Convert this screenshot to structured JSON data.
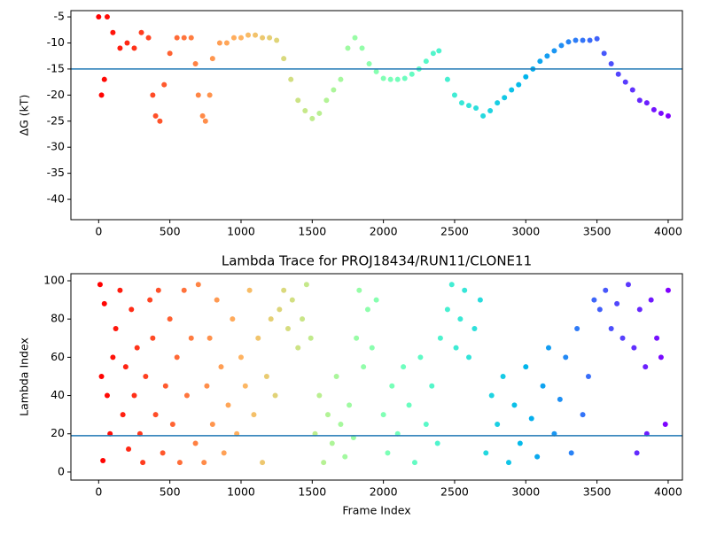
{
  "chart_data": [
    {
      "type": "scatter",
      "ylabel": "ΔG (kT)",
      "colormap": "rainbow_r",
      "hline": -15,
      "hline_color": "#1f77b4",
      "xlim": [
        -195,
        4100
      ],
      "ylim": [
        -43.9,
        -3.8
      ],
      "xticks": [
        0,
        500,
        1000,
        1500,
        2000,
        2500,
        3000,
        3500,
        4000
      ],
      "yticks": [
        -5,
        -10,
        -15,
        -20,
        -25,
        -30,
        -35,
        -40
      ],
      "x": [
        0,
        20,
        40,
        60,
        100,
        150,
        200,
        250,
        300,
        350,
        380,
        400,
        430,
        460,
        500,
        550,
        600,
        650,
        680,
        700,
        730,
        750,
        780,
        800,
        850,
        900,
        950,
        1000,
        1050,
        1100,
        1150,
        1200,
        1250,
        1300,
        1350,
        1400,
        1450,
        1500,
        1550,
        1600,
        1650,
        1700,
        1750,
        1800,
        1850,
        1900,
        1950,
        2000,
        2050,
        2100,
        2150,
        2200,
        2250,
        2300,
        2350,
        2390,
        2450,
        2500,
        2550,
        2600,
        2650,
        2700,
        2750,
        2800,
        2850,
        2900,
        2950,
        3000,
        3050,
        3100,
        3150,
        3200,
        3250,
        3300,
        3350,
        3400,
        3450,
        3500,
        3550,
        3600,
        3650,
        3700,
        3750,
        3800,
        3850,
        3900,
        3950,
        4000
      ],
      "values": [
        -5,
        -20,
        -17,
        -5,
        -8,
        -11,
        -10,
        -11,
        -8,
        -9,
        -20,
        -24,
        -25,
        -18,
        -12,
        -9,
        -9,
        -9,
        -14,
        -20,
        -24,
        -25,
        -20,
        -13,
        -10,
        -10,
        -9,
        -9,
        -8.5,
        -8.5,
        -9,
        -9,
        -9.5,
        -13,
        -17,
        -21,
        -23,
        -24.5,
        -23.5,
        -21,
        -19,
        -17,
        -11,
        -9,
        -11,
        -14,
        -15.5,
        -16.8,
        -17,
        -17,
        -16.8,
        -16,
        -15,
        -13.5,
        -12,
        -11.5,
        -17,
        -20,
        -21.5,
        -22,
        -22.5,
        -24,
        -23,
        -21.5,
        -20.5,
        -19,
        -18,
        -16.5,
        -15,
        -13.5,
        -12.5,
        -11.5,
        -10.5,
        -9.8,
        -9.5,
        -9.5,
        -9.5,
        -9.2,
        -12,
        -14,
        -16,
        -17.5,
        -19,
        -21,
        -21.5,
        -22.8,
        -23.5,
        -24
      ]
    },
    {
      "type": "scatter",
      "title": "Lambda Trace for PROJ18434/RUN11/CLONE11",
      "xlabel": "Frame Index",
      "ylabel": "Lambda Index",
      "colormap": "rainbow_r",
      "hline": 19,
      "hline_color": "#1f77b4",
      "xlim": [
        -195,
        4100
      ],
      "ylim": [
        -4.2,
        103.7
      ],
      "xticks": [
        0,
        500,
        1000,
        1500,
        2000,
        2500,
        3000,
        3500,
        4000
      ],
      "yticks": [
        0,
        20,
        40,
        60,
        80,
        100
      ],
      "x": [
        10,
        20,
        30,
        40,
        60,
        80,
        100,
        120,
        150,
        170,
        190,
        210,
        230,
        250,
        270,
        290,
        310,
        330,
        360,
        380,
        400,
        420,
        450,
        470,
        500,
        520,
        550,
        570,
        600,
        620,
        650,
        680,
        700,
        740,
        760,
        780,
        800,
        830,
        860,
        880,
        910,
        940,
        970,
        1000,
        1030,
        1060,
        1090,
        1120,
        1150,
        1180,
        1210,
        1240,
        1270,
        1300,
        1330,
        1360,
        1400,
        1430,
        1460,
        1490,
        1520,
        1550,
        1580,
        1610,
        1640,
        1670,
        1700,
        1730,
        1760,
        1790,
        1810,
        1830,
        1860,
        1890,
        1920,
        1950,
        2000,
        2030,
        2060,
        2100,
        2140,
        2180,
        2220,
        2260,
        2300,
        2340,
        2380,
        2400,
        2450,
        2480,
        2510,
        2540,
        2570,
        2600,
        2640,
        2680,
        2720,
        2760,
        2800,
        2840,
        2880,
        2920,
        2960,
        3000,
        3040,
        3080,
        3120,
        3160,
        3200,
        3240,
        3280,
        3320,
        3360,
        3400,
        3440,
        3480,
        3520,
        3560,
        3600,
        3640,
        3680,
        3720,
        3760,
        3780,
        3800,
        3840,
        3850,
        3880,
        3920,
        3950,
        3980,
        4000
      ],
      "values": [
        98,
        50,
        6,
        88,
        40,
        20,
        60,
        75,
        95,
        30,
        55,
        12,
        85,
        40,
        65,
        20,
        5,
        50,
        90,
        70,
        30,
        95,
        10,
        45,
        80,
        25,
        60,
        5,
        95,
        40,
        70,
        15,
        98,
        5,
        45,
        70,
        25,
        90,
        55,
        10,
        35,
        80,
        20,
        60,
        45,
        95,
        30,
        70,
        5,
        50,
        80,
        40,
        85,
        95,
        75,
        90,
        65,
        80,
        98,
        70,
        20,
        40,
        5,
        30,
        15,
        50,
        25,
        8,
        35,
        18,
        70,
        95,
        55,
        85,
        65,
        90,
        30,
        10,
        45,
        20,
        55,
        35,
        5,
        60,
        25,
        45,
        15,
        70,
        85,
        98,
        65,
        80,
        95,
        60,
        75,
        90,
        10,
        40,
        25,
        50,
        5,
        35,
        15,
        55,
        28,
        8,
        45,
        65,
        20,
        38,
        60,
        10,
        75,
        30,
        50,
        90,
        85,
        95,
        75,
        88,
        70,
        98,
        65,
        10,
        85,
        55,
        20,
        90,
        70,
        60,
        25,
        95
      ]
    }
  ]
}
